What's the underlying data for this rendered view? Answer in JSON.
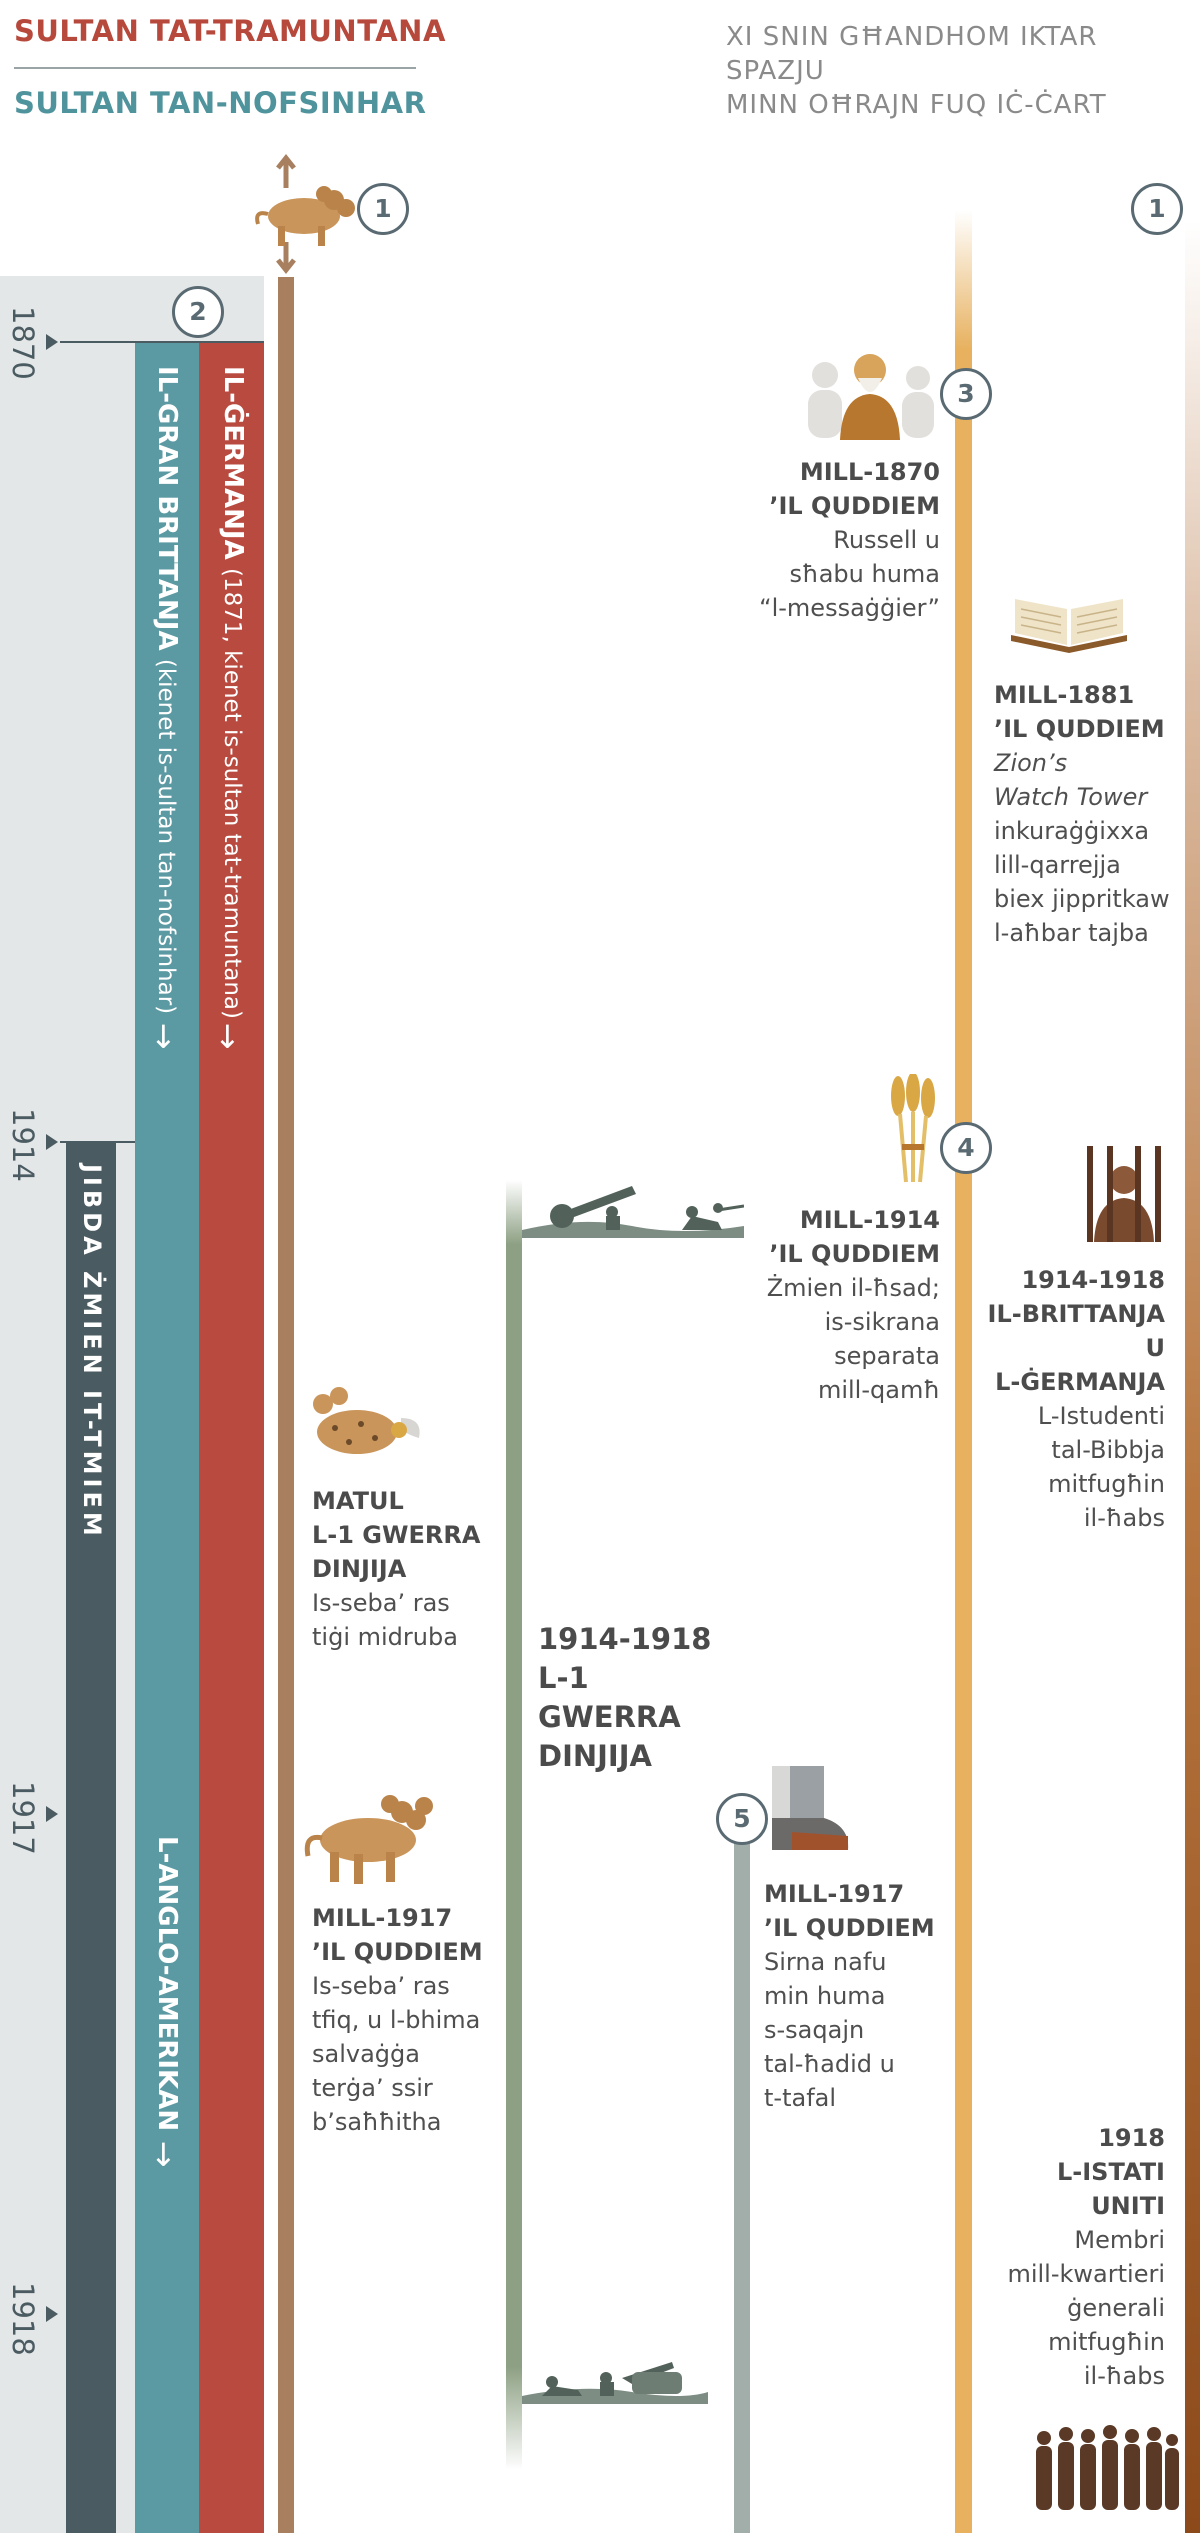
{
  "header": {
    "king_north": "SULTAN TAT-TRAMUNTANA",
    "king_south": "SULTAN TAN-NOFSINHAR",
    "subtitle_line1": "XI SNIN GĦANDHOM IKTAR SPAZJU",
    "subtitle_line2": "MINN OĦRAJN FUQ IĊ-ĊART"
  },
  "years": [
    "1870",
    "1914",
    "1917",
    "1918"
  ],
  "markers": [
    "1",
    "2",
    "3",
    "4",
    "5",
    "1"
  ],
  "bars": {
    "germany_title": "IL-ĠERMANJA",
    "germany_note": "(1871, kienet is-sultan tat-tramuntana)",
    "britain_title": "IL-GRAN BRITTANJA",
    "britain_note": "(kienet is-sultan tan-nofsinhar)",
    "anglo_american": "L-ANGLO-AMERIKAN",
    "time_of_end": "JIBDA ŻMIEN IT-TMIEM",
    "arrow": "↓"
  },
  "events": {
    "e1870": {
      "title1": "MILL-1870",
      "title2": "’IL QUDDIEM",
      "lines": [
        "Russell u",
        "sħabu huma",
        "“l-messaġġier”"
      ]
    },
    "e1881": {
      "title1": "MILL-1881",
      "title2": "’IL QUDDIEM",
      "italic1": "Zion’s",
      "italic2": "Watch Tower",
      "lines": [
        "inkuraġġixxa",
        "lill-qarrejja",
        "biex jippritkaw",
        "l-aħbar tajba"
      ]
    },
    "e1914": {
      "title1": "MILL-1914",
      "title2": "’IL QUDDIEM",
      "lines": [
        "Żmien il-ħsad;",
        "is-sikrana",
        "separata",
        "mill-qamħ"
      ]
    },
    "e1914_1918_right": {
      "title1": "1914-1918",
      "title2": "IL-BRITTANJA",
      "title3": "U",
      "title4": "L-ĠERMANJA",
      "lines": [
        "L-Istudenti",
        "tal-Bibbja",
        "mitfugħin",
        "il-ħabs"
      ]
    },
    "e_wwi_beast": {
      "title1": "MATUL",
      "title2": "L-1 GWERRA",
      "title3": "DINJIJA",
      "lines": [
        "Is-seba’ ras",
        "tiġi midruba"
      ]
    },
    "e_wwi": {
      "title1": "1914-1918",
      "title2": "L-1 GWERRA",
      "title3": "DINJIJA"
    },
    "e1917_beast": {
      "title1": "MILL-1917",
      "title2": "’IL QUDDIEM",
      "lines": [
        "Is-seba’ ras",
        "tfiq, u l-bhima",
        "salvaġġa",
        "terġa’ ssir",
        "b’saħħitha"
      ]
    },
    "e1917_feet": {
      "title1": "MILL-1917",
      "title2": "’IL QUDDIEM",
      "lines": [
        "Sirna nafu",
        "min huma",
        "s-saqajn",
        "tal-ħadid u",
        "t-tafal"
      ]
    },
    "e1918": {
      "title1": "1918",
      "title2": "L-ISTATI",
      "title3": "UNITI",
      "lines": [
        "Membri",
        "mill-kwartieri",
        "ġenerali",
        "mitfugħin",
        "il-ħabs"
      ]
    }
  },
  "colors": {
    "north": "#b7483c",
    "south": "#4f939c",
    "germany": "#b94a3f",
    "britain": "#5c9aa3",
    "time_of_end": "#4b5b62",
    "kingdom_line": "#e7b15f"
  },
  "icons": [
    "beast-icon",
    "bearded-man-icon",
    "bible-icon",
    "wheat-icon",
    "prisoner-icon",
    "wounded-beast-icon",
    "soldiers-icon",
    "iron-clay-feet-icon",
    "group-of-men-icon"
  ]
}
